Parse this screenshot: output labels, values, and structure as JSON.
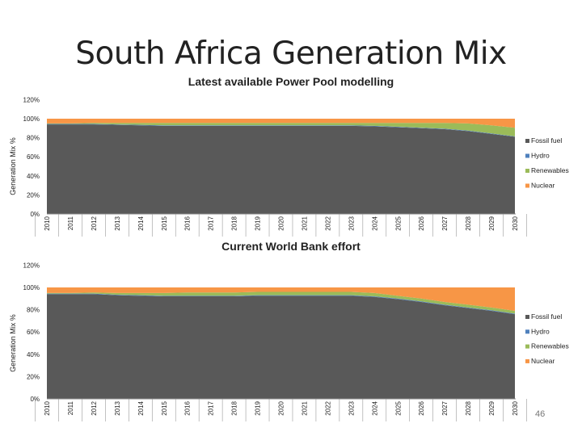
{
  "slide": {
    "title": "South Africa Generation Mix",
    "subtitle": "Latest available Power Pool modelling",
    "page_number": "46"
  },
  "colors": {
    "fossil": "#595959",
    "hydro": "#4f81bd",
    "renewables": "#9bbb59",
    "nuclear": "#f79646"
  },
  "chart_data": [
    {
      "type": "area",
      "stacked": true,
      "title": "",
      "xlabel": "",
      "ylabel": "Generation Mix %",
      "ylim": [
        0,
        120
      ],
      "yticks": [
        "0%",
        "20%",
        "40%",
        "60%",
        "80%",
        "100%",
        "120%"
      ],
      "ytick_values": [
        0,
        20,
        40,
        60,
        80,
        100,
        120
      ],
      "categories": [
        "2010",
        "2011",
        "2012",
        "2013",
        "2014",
        "2015",
        "2016",
        "2017",
        "2018",
        "2019",
        "2020",
        "2021",
        "2022",
        "2023",
        "2024",
        "2025",
        "2026",
        "2027",
        "2028",
        "2029",
        "2030"
      ],
      "legend_position": "right",
      "series": [
        {
          "name": "Fossil fuel",
          "color_key": "fossil",
          "values": [
            94,
            94,
            94,
            93.5,
            93,
            92.5,
            92.5,
            92.5,
            92.5,
            92.5,
            92.5,
            92.5,
            92.5,
            92.5,
            92,
            91,
            90,
            89,
            87,
            84,
            81
          ]
        },
        {
          "name": "Hydro",
          "color_key": "hydro",
          "values": [
            0.5,
            0.5,
            0.5,
            0.5,
            0.5,
            0.5,
            0.5,
            0.5,
            0.5,
            0.5,
            0.5,
            0.5,
            0.5,
            0.5,
            0.5,
            0.5,
            0.5,
            0.5,
            0.5,
            0.5,
            0.5
          ]
        },
        {
          "name": "Renewables",
          "color_key": "renewables",
          "values": [
            0.5,
            0.5,
            1,
            1.5,
            2,
            2.5,
            2.5,
            2.5,
            2.5,
            2.5,
            2.5,
            2.5,
            2.5,
            2.5,
            3,
            4,
            5,
            6,
            7.5,
            8.5,
            9
          ]
        },
        {
          "name": "Nuclear",
          "color_key": "nuclear",
          "values": [
            5,
            5,
            4.5,
            4.5,
            4.5,
            4.5,
            4.5,
            4.5,
            4.5,
            4.5,
            4.5,
            4.5,
            4.5,
            4.5,
            4.5,
            4.5,
            4.5,
            4.5,
            5,
            7,
            9.5
          ]
        }
      ]
    },
    {
      "type": "area",
      "stacked": true,
      "title": "Current World Bank effort",
      "xlabel": "",
      "ylabel": "Generation Mix %",
      "ylim": [
        0,
        120
      ],
      "yticks": [
        "0%",
        "20%",
        "40%",
        "60%",
        "80%",
        "100%",
        "120%"
      ],
      "ytick_values": [
        0,
        20,
        40,
        60,
        80,
        100,
        120
      ],
      "categories": [
        "2010",
        "2011",
        "2012",
        "2013",
        "2014",
        "2015",
        "2016",
        "2017",
        "2018",
        "2019",
        "2020",
        "2021",
        "2022",
        "2023",
        "2024",
        "2025",
        "2026",
        "2027",
        "2028",
        "2029",
        "2030"
      ],
      "legend_position": "right",
      "series": [
        {
          "name": "Fossil fuel",
          "color_key": "fossil",
          "values": [
            94,
            94,
            94,
            93,
            92.5,
            92,
            92,
            92,
            92,
            92.5,
            92.5,
            92.5,
            92.5,
            92.5,
            91.5,
            89.5,
            87,
            84,
            81.5,
            79,
            76
          ]
        },
        {
          "name": "Hydro",
          "color_key": "hydro",
          "values": [
            0.5,
            0.5,
            0.5,
            0.5,
            0.5,
            0.5,
            0.5,
            0.5,
            0.5,
            0.5,
            0.5,
            0.5,
            0.5,
            0.5,
            0.5,
            0.5,
            0.5,
            0.5,
            0.5,
            0.5,
            0.5
          ]
        },
        {
          "name": "Renewables",
          "color_key": "renewables",
          "values": [
            0.5,
            0.5,
            1,
            1.5,
            2,
            2.5,
            3,
            3,
            3,
            3,
            3,
            3,
            3,
            3,
            3,
            2.5,
            2.5,
            2.5,
            2.5,
            2.5,
            2.5
          ]
        },
        {
          "name": "Nuclear",
          "color_key": "nuclear",
          "values": [
            5,
            5,
            4.5,
            5,
            5,
            5,
            4.5,
            4.5,
            4.5,
            4,
            4,
            4,
            4,
            4,
            5,
            7.5,
            10,
            13,
            15.5,
            18,
            21
          ]
        }
      ]
    }
  ]
}
